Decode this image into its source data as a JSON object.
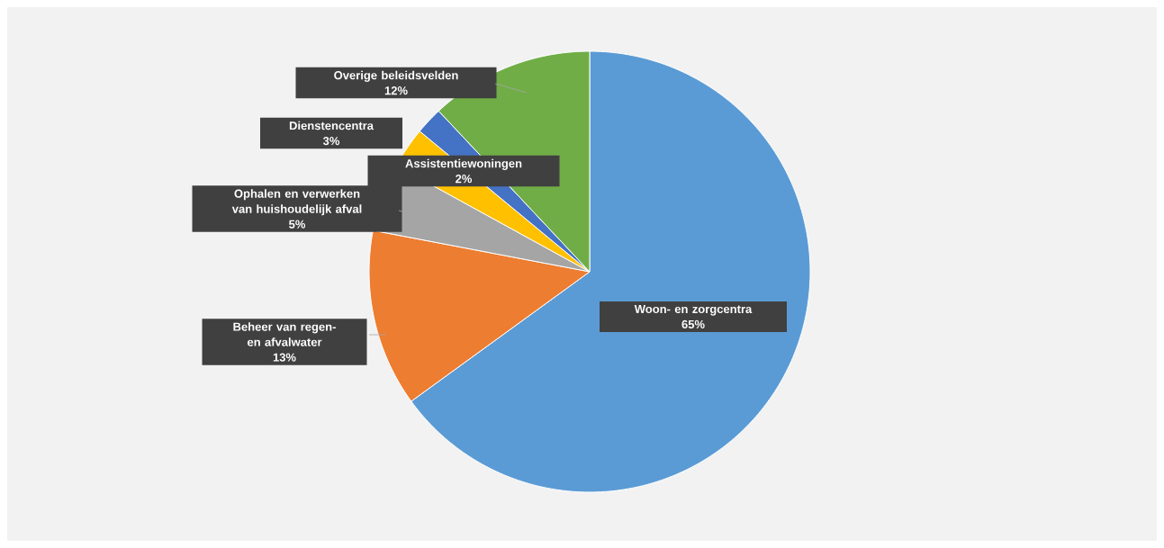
{
  "chart_data": {
    "type": "pie",
    "categories": [
      "Woon- en zorgcentra",
      "Beheer van regen- en afvalwater",
      "Ophalen en verwerken van huishoudelijk afval",
      "Dienstencentra",
      "Assistentiewoningen",
      "Overige beleidsvelden"
    ],
    "values": [
      65,
      13,
      5,
      3,
      2,
      12
    ],
    "colors": [
      "#5b9bd5",
      "#ed7d31",
      "#a5a5a5",
      "#ffc000",
      "#4472c4",
      "#70ad47"
    ],
    "value_labels": [
      "65%",
      "13%",
      "5%",
      "3%",
      "2%",
      "12%"
    ]
  }
}
